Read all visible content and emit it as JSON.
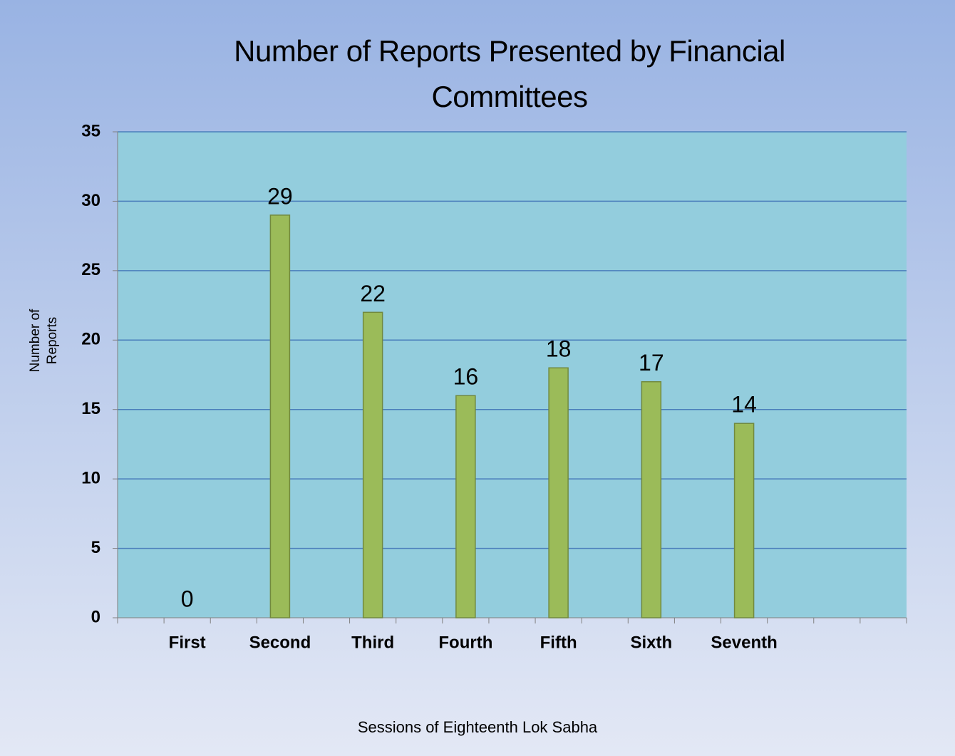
{
  "chart_data": {
    "type": "bar",
    "title": "Number of Reports  Presented by Financial Committees",
    "x_label": "Sessions of Eighteenth Lok Sabha",
    "y_label": "Number of Reports",
    "categories": [
      null,
      "First",
      null,
      "Second",
      null,
      "Third",
      null,
      "Fourth",
      null,
      "Fifth",
      null,
      "Sixth",
      null,
      "Seventh",
      null,
      null,
      null
    ],
    "values": [
      null,
      0,
      null,
      29,
      null,
      22,
      null,
      16,
      null,
      18,
      null,
      17,
      null,
      14,
      null,
      null,
      null
    ],
    "color": "#9bbb59",
    "ylim": [
      0,
      35
    ],
    "yticks": [
      0,
      5,
      10,
      15,
      20,
      25,
      30,
      35
    ],
    "grid": true
  }
}
